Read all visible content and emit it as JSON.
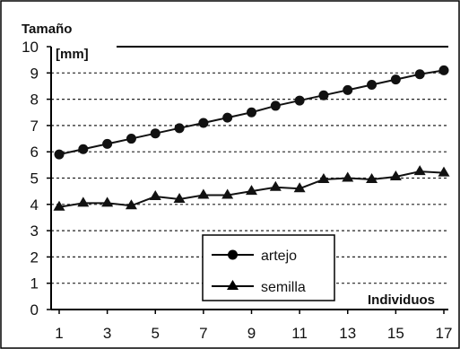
{
  "chart_data": {
    "type": "line",
    "title": "",
    "ylabel_line1": "Tamaño",
    "ylabel_line2": "[mm]",
    "xlabel": "Individuos",
    "ylim": [
      0,
      10
    ],
    "xlim": [
      1,
      17
    ],
    "yticks": [
      "0",
      "1",
      "2",
      "3",
      "4",
      "5",
      "6",
      "7",
      "8",
      "9",
      "10"
    ],
    "xticks": [
      "1",
      "3",
      "5",
      "7",
      "9",
      "11",
      "13",
      "15",
      "17"
    ],
    "grid": "horizontal dotted",
    "legend_placement": "bottom-center",
    "x": [
      1,
      2,
      3,
      4,
      5,
      6,
      7,
      8,
      9,
      10,
      11,
      12,
      13,
      14,
      15,
      16,
      17
    ],
    "series": [
      {
        "name": "artejo",
        "marker": "circle",
        "color": "#111111",
        "values": [
          5.9,
          6.1,
          6.3,
          6.5,
          6.7,
          6.9,
          7.1,
          7.3,
          7.5,
          7.75,
          7.95,
          8.15,
          8.35,
          8.55,
          8.75,
          8.95,
          9.1
        ]
      },
      {
        "name": "semilla",
        "marker": "triangle",
        "color": "#111111",
        "values": [
          3.9,
          4.05,
          4.05,
          3.95,
          4.3,
          4.2,
          4.35,
          4.35,
          4.5,
          4.65,
          4.6,
          4.95,
          5.0,
          4.95,
          5.05,
          5.25,
          5.2
        ]
      }
    ]
  }
}
